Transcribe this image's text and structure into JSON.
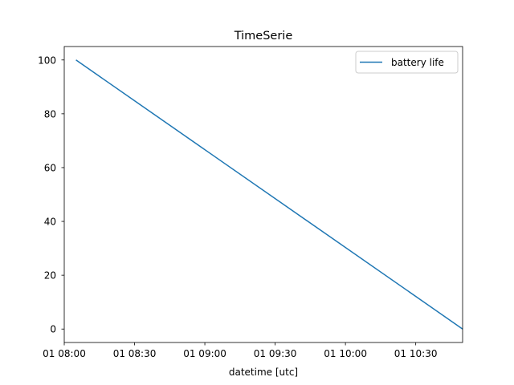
{
  "chart_data": {
    "type": "line",
    "title": "TimeSerie",
    "xlabel": "datetime [utc]",
    "ylabel": "",
    "x_axis_type": "datetime",
    "xlim": [
      "2000-01-01T08:00:00",
      "2000-01-01T10:50:00"
    ],
    "ylim": [
      -5,
      105
    ],
    "x_ticks": [
      {
        "value": "2000-01-01T08:00:00",
        "label": "01 08:00"
      },
      {
        "value": "2000-01-01T08:30:00",
        "label": "01 08:30"
      },
      {
        "value": "2000-01-01T09:00:00",
        "label": "01 09:00"
      },
      {
        "value": "2000-01-01T09:30:00",
        "label": "01 09:30"
      },
      {
        "value": "2000-01-01T10:00:00",
        "label": "01 10:00"
      },
      {
        "value": "2000-01-01T10:30:00",
        "label": "01 10:30"
      }
    ],
    "y_ticks": [
      {
        "value": 0,
        "label": "0"
      },
      {
        "value": 20,
        "label": "20"
      },
      {
        "value": 40,
        "label": "40"
      },
      {
        "value": 60,
        "label": "60"
      },
      {
        "value": 80,
        "label": "80"
      },
      {
        "value": 100,
        "label": "100"
      }
    ],
    "grid": false,
    "legend_position": "top-right",
    "series": [
      {
        "name": "battery life",
        "color": "#1f77b4",
        "points": [
          {
            "x": "2000-01-01T08:05:00",
            "y": 100
          },
          {
            "x": "2000-01-01T10:50:00",
            "y": 0
          }
        ]
      }
    ]
  }
}
